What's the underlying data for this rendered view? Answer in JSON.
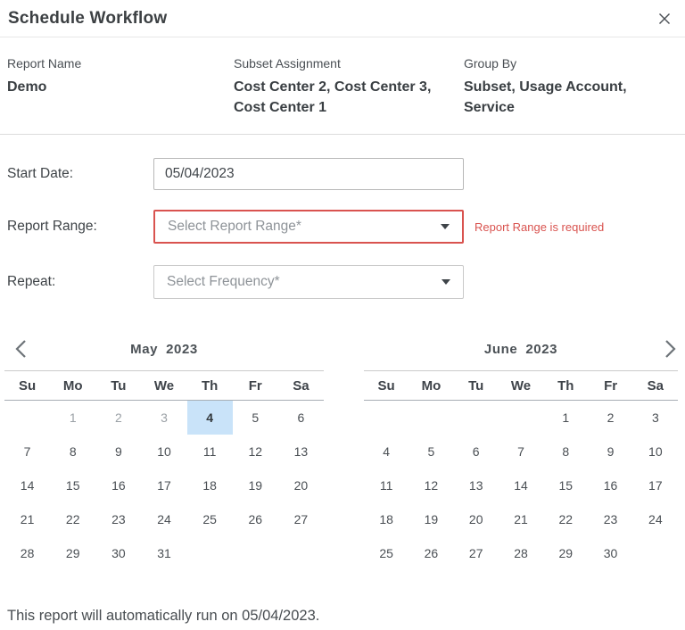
{
  "dialog": {
    "title": "Schedule Workflow"
  },
  "icons": {
    "close": "x-close-icon",
    "prev": "chevron-left-icon",
    "next": "chevron-right-icon",
    "dropdown": "caret-down-icon"
  },
  "info": {
    "fields": [
      {
        "label": "Report Name",
        "value": "Demo"
      },
      {
        "label": "Subset Assignment",
        "value": "Cost Center 2, Cost Center 3, Cost Center 1"
      },
      {
        "label": "Group By",
        "value": "Subset, Usage Account, Service"
      }
    ]
  },
  "form": {
    "start_date": {
      "label": "Start Date:",
      "value": "05/04/2023"
    },
    "report_range": {
      "label": "Report Range:",
      "placeholder": "Select Report Range*",
      "error": "Report Range is required"
    },
    "repeat": {
      "label": "Repeat:",
      "placeholder": "Select Frequency*"
    }
  },
  "calendar": {
    "weekdays": [
      "Su",
      "Mo",
      "Tu",
      "We",
      "Th",
      "Fr",
      "Sa"
    ],
    "months": [
      {
        "name": "May",
        "year": "2023",
        "nav": "prev",
        "days": [
          "",
          "1",
          "2",
          "3",
          "4",
          "5",
          "6",
          "7",
          "8",
          "9",
          "10",
          "11",
          "12",
          "13",
          "14",
          "15",
          "16",
          "17",
          "18",
          "19",
          "20",
          "21",
          "22",
          "23",
          "24",
          "25",
          "26",
          "27",
          "28",
          "29",
          "30",
          "31",
          "",
          "",
          ""
        ],
        "muted": [
          "1",
          "2",
          "3"
        ],
        "selected": "4"
      },
      {
        "name": "June",
        "year": "2023",
        "nav": "next",
        "days": [
          "",
          "",
          "",
          "",
          "1",
          "2",
          "3",
          "4",
          "5",
          "6",
          "7",
          "8",
          "9",
          "10",
          "11",
          "12",
          "13",
          "14",
          "15",
          "16",
          "17",
          "18",
          "19",
          "20",
          "21",
          "22",
          "23",
          "24",
          "25",
          "26",
          "27",
          "28",
          "29",
          "30",
          ""
        ],
        "muted": [],
        "selected": ""
      }
    ]
  },
  "footer": {
    "text": "This report will automatically run on 05/04/2023."
  },
  "colors": {
    "error": "#d9534f",
    "selected_day_bg": "#c9e3f9"
  }
}
